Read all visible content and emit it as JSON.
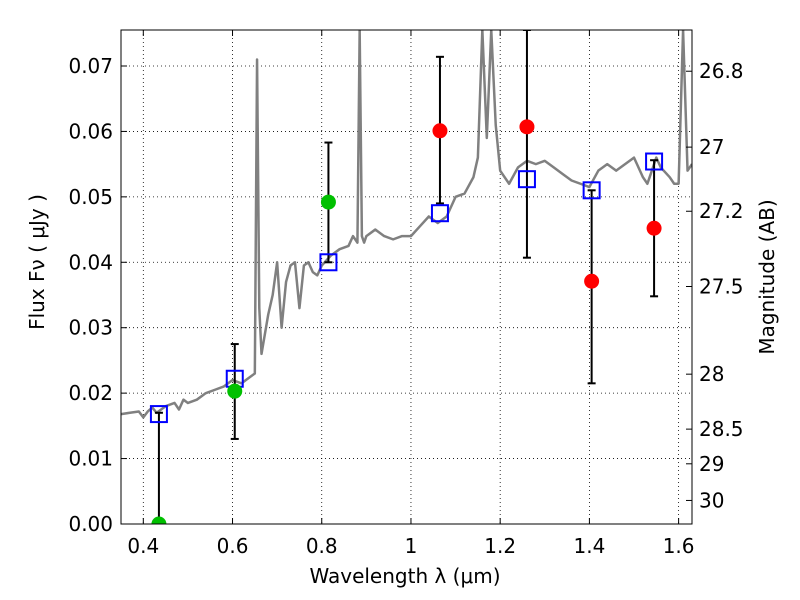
{
  "chart_data": {
    "type": "scatter",
    "title": "",
    "xlabel": "Wavelength  λ (μm)",
    "ylabel": "Flux  Fν  ( μJy )",
    "y2label": "Magnitude (AB)",
    "xlim": [
      0.35,
      1.63
    ],
    "ylim": [
      0.0,
      0.0755
    ],
    "grid": true,
    "x_ticks": [
      {
        "value": 0.4,
        "label": "0.4"
      },
      {
        "value": 0.6,
        "label": "0.6"
      },
      {
        "value": 0.8,
        "label": "0.8"
      },
      {
        "value": 1.0,
        "label": "1"
      },
      {
        "value": 1.2,
        "label": "1.2"
      },
      {
        "value": 1.4,
        "label": "1.4"
      },
      {
        "value": 1.6,
        "label": "1.6"
      }
    ],
    "y_ticks": [
      {
        "value": 0.0,
        "label": "0.00"
      },
      {
        "value": 0.01,
        "label": "0.01"
      },
      {
        "value": 0.02,
        "label": "0.02"
      },
      {
        "value": 0.03,
        "label": "0.03"
      },
      {
        "value": 0.04,
        "label": "0.04"
      },
      {
        "value": 0.05,
        "label": "0.05"
      },
      {
        "value": 0.06,
        "label": "0.06"
      },
      {
        "value": 0.07,
        "label": "0.07"
      }
    ],
    "y2_ticks": [
      {
        "flux": 0.0692,
        "label": "26.8"
      },
      {
        "flux": 0.0576,
        "label": "27"
      },
      {
        "flux": 0.0478,
        "label": "27.2"
      },
      {
        "flux": 0.0363,
        "label": "27.5"
      },
      {
        "flux": 0.0229,
        "label": "28"
      },
      {
        "flux": 0.0145,
        "label": "28.5"
      },
      {
        "flux": 0.0092,
        "label": "29"
      },
      {
        "flux": 0.0036,
        "label": "30"
      }
    ],
    "series": [
      {
        "type": "line",
        "color": "#808080",
        "x": [
          0.35,
          0.37,
          0.39,
          0.4,
          0.41,
          0.42,
          0.43,
          0.45,
          0.47,
          0.48,
          0.49,
          0.5,
          0.52,
          0.54,
          0.56,
          0.58,
          0.6,
          0.62,
          0.64,
          0.65,
          0.655,
          0.66,
          0.665,
          0.67,
          0.68,
          0.69,
          0.7,
          0.71,
          0.72,
          0.73,
          0.74,
          0.75,
          0.76,
          0.77,
          0.78,
          0.79,
          0.8,
          0.82,
          0.84,
          0.86,
          0.87,
          0.88,
          0.885,
          0.89,
          0.895,
          0.9,
          0.92,
          0.94,
          0.96,
          0.98,
          1.0,
          1.02,
          1.04,
          1.06,
          1.08,
          1.1,
          1.12,
          1.14,
          1.15,
          1.16,
          1.17,
          1.18,
          1.19,
          1.2,
          1.22,
          1.24,
          1.26,
          1.28,
          1.3,
          1.32,
          1.34,
          1.36,
          1.38,
          1.4,
          1.42,
          1.44,
          1.46,
          1.48,
          1.5,
          1.52,
          1.53,
          1.54,
          1.55,
          1.56,
          1.58,
          1.59,
          1.6,
          1.61,
          1.62,
          1.63
        ],
        "y": [
          0.0168,
          0.017,
          0.0172,
          0.0163,
          0.0172,
          0.0178,
          0.017,
          0.018,
          0.0185,
          0.0175,
          0.019,
          0.0185,
          0.019,
          0.02,
          0.0205,
          0.021,
          0.022,
          0.0215,
          0.0225,
          0.023,
          0.071,
          0.033,
          0.026,
          0.028,
          0.032,
          0.035,
          0.04,
          0.03,
          0.037,
          0.0395,
          0.04,
          0.033,
          0.0395,
          0.04,
          0.0385,
          0.038,
          0.0395,
          0.041,
          0.042,
          0.0425,
          0.044,
          0.043,
          0.0755,
          0.044,
          0.043,
          0.044,
          0.045,
          0.044,
          0.0435,
          0.044,
          0.044,
          0.0455,
          0.047,
          0.046,
          0.047,
          0.05,
          0.0505,
          0.053,
          0.056,
          0.0755,
          0.059,
          0.0755,
          0.061,
          0.054,
          0.052,
          0.0545,
          0.0555,
          0.055,
          0.0555,
          0.0545,
          0.0535,
          0.0525,
          0.052,
          0.0515,
          0.054,
          0.055,
          0.054,
          0.055,
          0.056,
          0.053,
          0.052,
          0.054,
          0.056,
          0.0545,
          0.053,
          0.052,
          0.052,
          0.0755,
          0.054,
          0.055
        ]
      },
      {
        "type": "squares",
        "color": "#0000ff",
        "x": [
          0.435,
          0.605,
          0.815,
          1.065,
          1.26,
          1.405,
          1.545
        ],
        "y": [
          0.0168,
          0.0222,
          0.04,
          0.0475,
          0.0527,
          0.051,
          0.0554
        ]
      },
      {
        "type": "circles",
        "color": "#00c000",
        "x": [
          0.435,
          0.605,
          0.815
        ],
        "y": [
          0.0,
          0.0203,
          0.0492
        ]
      },
      {
        "type": "circles",
        "color": "#ff0000",
        "x": [
          1.065,
          1.26,
          1.405,
          1.545
        ],
        "y": [
          0.0601,
          0.0607,
          0.0371,
          0.0452
        ]
      },
      {
        "type": "errorbars",
        "color": "#000000",
        "points": [
          {
            "x": 0.435,
            "lo": 0.0,
            "hi": 0.017
          },
          {
            "x": 0.605,
            "lo": 0.013,
            "hi": 0.0275
          },
          {
            "x": 0.815,
            "lo": 0.04,
            "hi": 0.0583
          },
          {
            "x": 1.065,
            "lo": 0.049,
            "hi": 0.0714
          },
          {
            "x": 1.26,
            "lo": 0.0407,
            "hi": 0.0755
          },
          {
            "x": 1.405,
            "lo": 0.0215,
            "hi": 0.051
          },
          {
            "x": 1.545,
            "lo": 0.0348,
            "hi": 0.0556
          }
        ]
      }
    ]
  }
}
